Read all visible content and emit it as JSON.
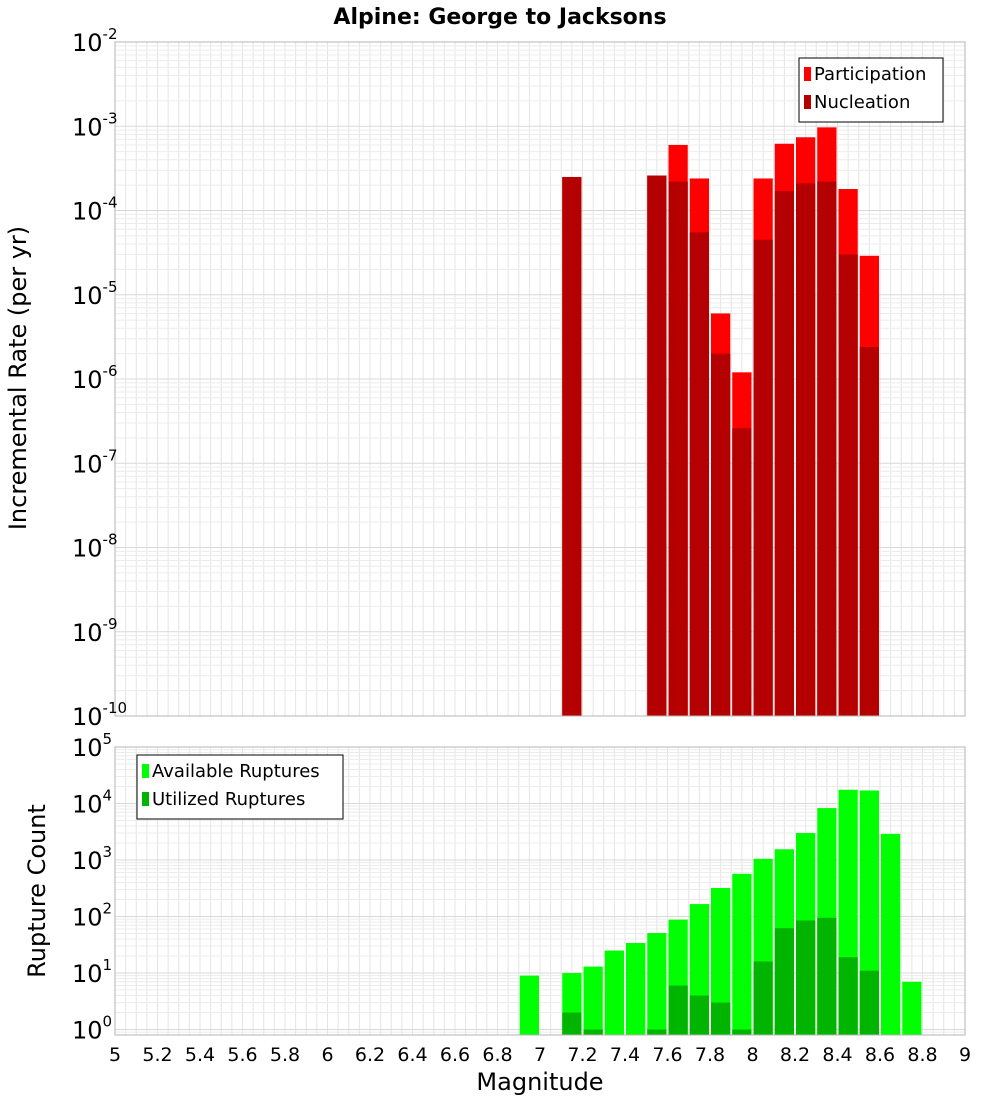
{
  "chart_data": [
    {
      "type": "bar",
      "panel": "top",
      "title": "Alpine: George to Jacksons",
      "ylabel": "Incremental Rate (per yr)",
      "yscale": "log",
      "ylim": [
        1e-10,
        0.01
      ],
      "y_tick_exponents": [
        -10,
        -9,
        -8,
        -7,
        -6,
        -5,
        -4,
        -3,
        -2
      ],
      "xlim": [
        5,
        9
      ],
      "bar_width": 0.1,
      "legend": {
        "position": "top-right",
        "entries": [
          "Participation",
          "Nucleation"
        ]
      },
      "x": [
        7.15,
        7.55,
        7.65,
        7.75,
        7.85,
        7.95,
        8.05,
        8.15,
        8.25,
        8.35,
        8.45,
        8.55
      ],
      "series": [
        {
          "name": "Participation",
          "color": "#ff0000",
          "values": [
            0.00025,
            0.00026,
            0.0006,
            0.00024,
            6e-06,
            1.2e-06,
            0.00024,
            0.00062,
            0.00074,
            0.00097,
            0.00018,
            2.9e-05
          ]
        },
        {
          "name": "Nucleation",
          "color": "#b40000",
          "values": [
            0.00025,
            0.00026,
            0.00022,
            5.5e-05,
            2e-06,
            2.6e-07,
            4.5e-05,
            0.00017,
            0.00021,
            0.00022,
            3e-05,
            2.4e-06
          ]
        }
      ]
    },
    {
      "type": "bar",
      "panel": "bottom",
      "ylabel": "Rupture Count",
      "xlabel": "Magnitude",
      "yscale": "log",
      "ylim": [
        0.8,
        100000
      ],
      "y_tick_exponents": [
        0,
        1,
        2,
        3,
        4,
        5
      ],
      "xlim": [
        5,
        9
      ],
      "x_ticks": [
        "5",
        "5.2",
        "5.4",
        "5.6",
        "5.8",
        "6",
        "6.2",
        "6.4",
        "6.6",
        "6.8",
        "7",
        "7.2",
        "7.4",
        "7.6",
        "7.8",
        "8",
        "8.2",
        "8.4",
        "8.6",
        "8.8",
        "9"
      ],
      "bar_width": 0.1,
      "legend": {
        "position": "top-left",
        "entries": [
          "Available Ruptures",
          "Utilized Ruptures"
        ]
      },
      "x": [
        6.95,
        7.15,
        7.25,
        7.35,
        7.45,
        7.55,
        7.65,
        7.75,
        7.85,
        7.95,
        8.05,
        8.15,
        8.25,
        8.35,
        8.45,
        8.55,
        8.65,
        8.75
      ],
      "series": [
        {
          "name": "Available Ruptures",
          "color": "#00ff00",
          "values": [
            9,
            10,
            13,
            25,
            34,
            51,
            88,
            166,
            320,
            570,
            1050,
            1550,
            3000,
            8300,
            17500,
            17000,
            2900,
            7
          ]
        },
        {
          "name": "Utilized Ruptures",
          "color": "#00b400",
          "values": [
            0,
            2,
            1,
            0,
            0,
            1,
            6,
            4,
            3,
            1,
            16,
            62,
            85,
            95,
            19,
            11,
            0,
            0
          ]
        }
      ]
    }
  ]
}
